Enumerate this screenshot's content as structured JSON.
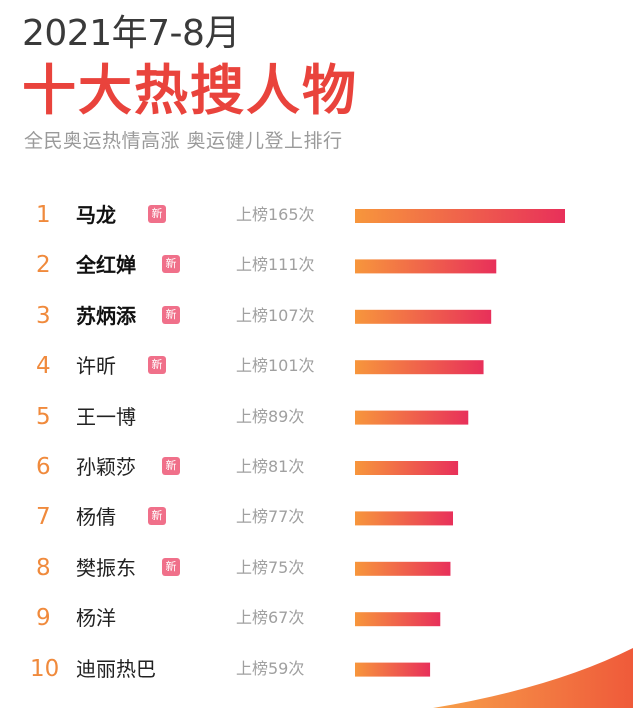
{
  "header": {
    "date_title": "2021年7-8月",
    "main_title": "十大热搜人物",
    "subtitle": "全民奥运热情高涨 奥运健儿登上排行"
  },
  "badge_text": "新",
  "colors": {
    "bar_start": "#f7963c",
    "bar_end": "#e8305a",
    "title": "#e9433c"
  },
  "chart_data": {
    "type": "bar",
    "orientation": "horizontal",
    "title": "十大热搜人物",
    "categories": [
      "马龙",
      "全红婵",
      "苏炳添",
      "许昕",
      "王一博",
      "孙颖莎",
      "杨倩",
      "樊振东",
      "杨洋",
      "迪丽热巴"
    ],
    "values": [
      165,
      111,
      107,
      101,
      89,
      81,
      77,
      75,
      67,
      59
    ],
    "xlim": [
      0,
      165
    ],
    "rows": [
      {
        "rank": "1",
        "name": "马龙",
        "count_label": "上榜165次",
        "is_new": true,
        "bold": true
      },
      {
        "rank": "2",
        "name": "全红婵",
        "count_label": "上榜111次",
        "is_new": true,
        "bold": true
      },
      {
        "rank": "3",
        "name": "苏炳添",
        "count_label": "上榜107次",
        "is_new": true,
        "bold": true
      },
      {
        "rank": "4",
        "name": "许昕",
        "count_label": "上榜101次",
        "is_new": true,
        "bold": false
      },
      {
        "rank": "5",
        "name": "王一博",
        "count_label": "上榜89次",
        "is_new": false,
        "bold": false
      },
      {
        "rank": "6",
        "name": "孙颖莎",
        "count_label": "上榜81次",
        "is_new": true,
        "bold": false
      },
      {
        "rank": "7",
        "name": "杨倩",
        "count_label": "上榜77次",
        "is_new": true,
        "bold": false
      },
      {
        "rank": "8",
        "name": "樊振东",
        "count_label": "上榜75次",
        "is_new": true,
        "bold": false
      },
      {
        "rank": "9",
        "name": "杨洋",
        "count_label": "上榜67次",
        "is_new": false,
        "bold": false
      },
      {
        "rank": "10",
        "name": "迪丽热巴",
        "count_label": "上榜59次",
        "is_new": false,
        "bold": false
      }
    ]
  }
}
